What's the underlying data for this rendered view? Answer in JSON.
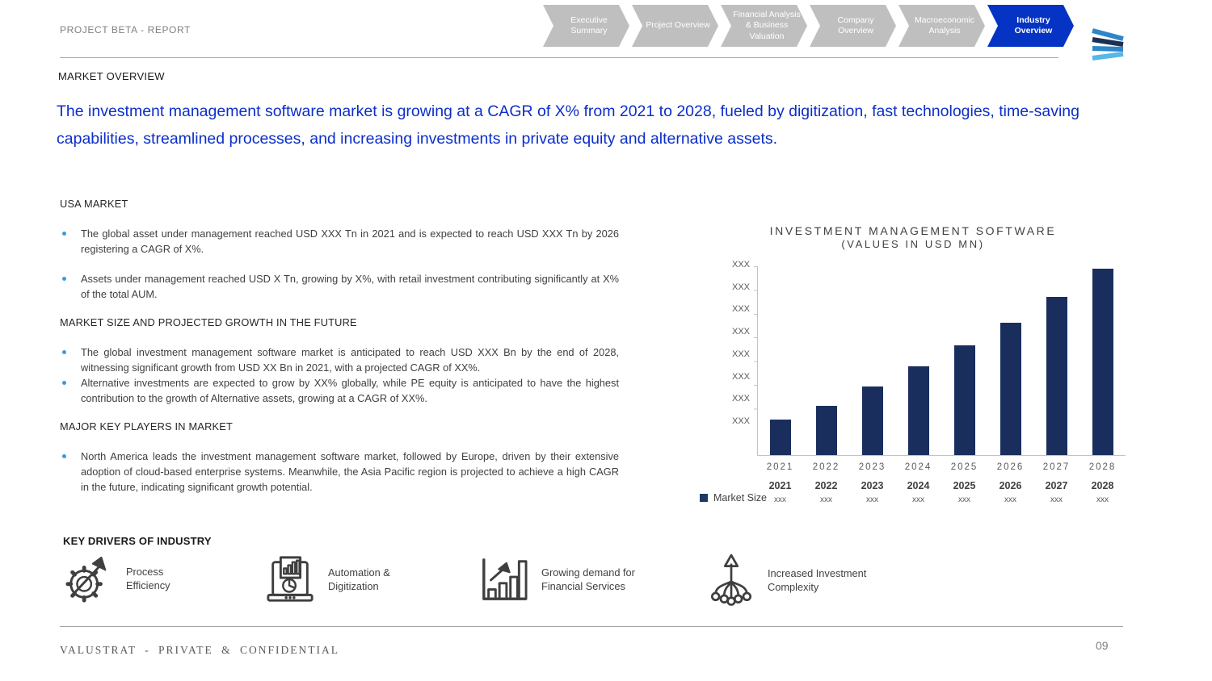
{
  "header": {
    "project_label": "PROJECT BETA - REPORT",
    "tabs": [
      {
        "label": "Executive Summary",
        "active": false
      },
      {
        "label": "Project Overview",
        "active": false
      },
      {
        "label": "Financial Analysis & Business Valuation",
        "active": false
      },
      {
        "label": "Company Overview",
        "active": false
      },
      {
        "label": "Macroeconomic Analysis",
        "active": false
      },
      {
        "label": "Industry Overview",
        "active": true
      }
    ]
  },
  "page": {
    "kicker": "MARKET OVERVIEW",
    "headline": "The investment management software market is growing at a CAGR of X% from 2021 to 2028, fueled by digitization, fast technologies, time-saving capabilities, streamlined processes, and increasing investments in private equity and alternative assets."
  },
  "sections": {
    "usa_market": {
      "heading": "USA MARKET",
      "bullets": [
        "The global asset under management reached USD XXX Tn in 2021 and is expected to reach USD XXX Tn by 2026 registering a CAGR of X%.",
        "Assets under management reached USD X Tn, growing by X%, with retail investment contributing significantly at X% of the total AUM."
      ]
    },
    "market_size": {
      "heading": "MARKET SIZE AND PROJECTED GROWTH IN THE FUTURE",
      "bullets": [
        "The global investment management software market is anticipated to reach USD XXX Bn by the end of 2028, witnessing significant growth from USD XX Bn in 2021, with a projected CAGR of XX%.",
        "Alternative investments are expected to grow by XX% globally, while PE equity is anticipated to have the highest contribution to the growth of Alternative assets, growing at a CAGR of XX%."
      ]
    },
    "key_players": {
      "heading": "MAJOR KEY PLAYERS IN MARKET",
      "bullets": [
        "North America leads the investment management software market, followed by Europe, driven by their extensive adoption of cloud-based enterprise systems. Meanwhile, the Asia Pacific region is projected to achieve a high CAGR in the future, indicating significant growth potential."
      ]
    }
  },
  "chart_data": {
    "type": "bar",
    "title": "INVESTMENT MANAGEMENT SOFTWARE",
    "subtitle": "(VALUES IN USD MN)",
    "xlabel": "",
    "ylabel": "",
    "categories": [
      "2021",
      "2022",
      "2023",
      "2024",
      "2025",
      "2026",
      "2027",
      "2028"
    ],
    "values": [
      1.5,
      2.1,
      2.9,
      3.75,
      4.65,
      5.6,
      6.7,
      7.9
    ],
    "value_labels": [
      "xxx",
      "xxx",
      "xxx",
      "xxx",
      "xxx",
      "xxx",
      "xxx",
      "xxx"
    ],
    "y_tick_labels": [
      "XXX",
      "XXX",
      "XXX",
      "XXX",
      "XXX",
      "XXX",
      "XXX",
      "XXX"
    ],
    "ylim": [
      0,
      8
    ],
    "grid": false,
    "legend_position": "bottom-left",
    "legend": [
      {
        "name": "Market Size",
        "color": "#1f3864"
      }
    ],
    "bar_color": "#1a2e5e",
    "table": {
      "years": [
        "2021",
        "2022",
        "2023",
        "2024",
        "2025",
        "2026",
        "2027",
        "2028"
      ],
      "values": [
        "xxx",
        "xxx",
        "xxx",
        "xxx",
        "xxx",
        "xxx",
        "xxx",
        "xxx"
      ]
    }
  },
  "key_drivers": {
    "heading": "KEY DRIVERS OF INDUSTRY",
    "items": [
      {
        "icon": "gear-arrow-icon",
        "label": "Process Efficiency"
      },
      {
        "icon": "laptop-analytics-icon",
        "label": "Automation & Digitization"
      },
      {
        "icon": "bar-chart-growth-icon",
        "label": "Growing demand for Financial Services"
      },
      {
        "icon": "network-branch-icon",
        "label": "Increased Investment Complexity"
      }
    ]
  },
  "footer": {
    "company": "VALUSTRAT - PRIVATE & CONFIDENTIAL",
    "page_number": "09"
  },
  "colors": {
    "active_tab_blue": "#0533c4",
    "headline_blue": "#0b2ec9",
    "chevron_gray": "#bfbfbf",
    "bar_navy": "#1a2e5e",
    "bullet_blue": "#3d9bd8"
  }
}
